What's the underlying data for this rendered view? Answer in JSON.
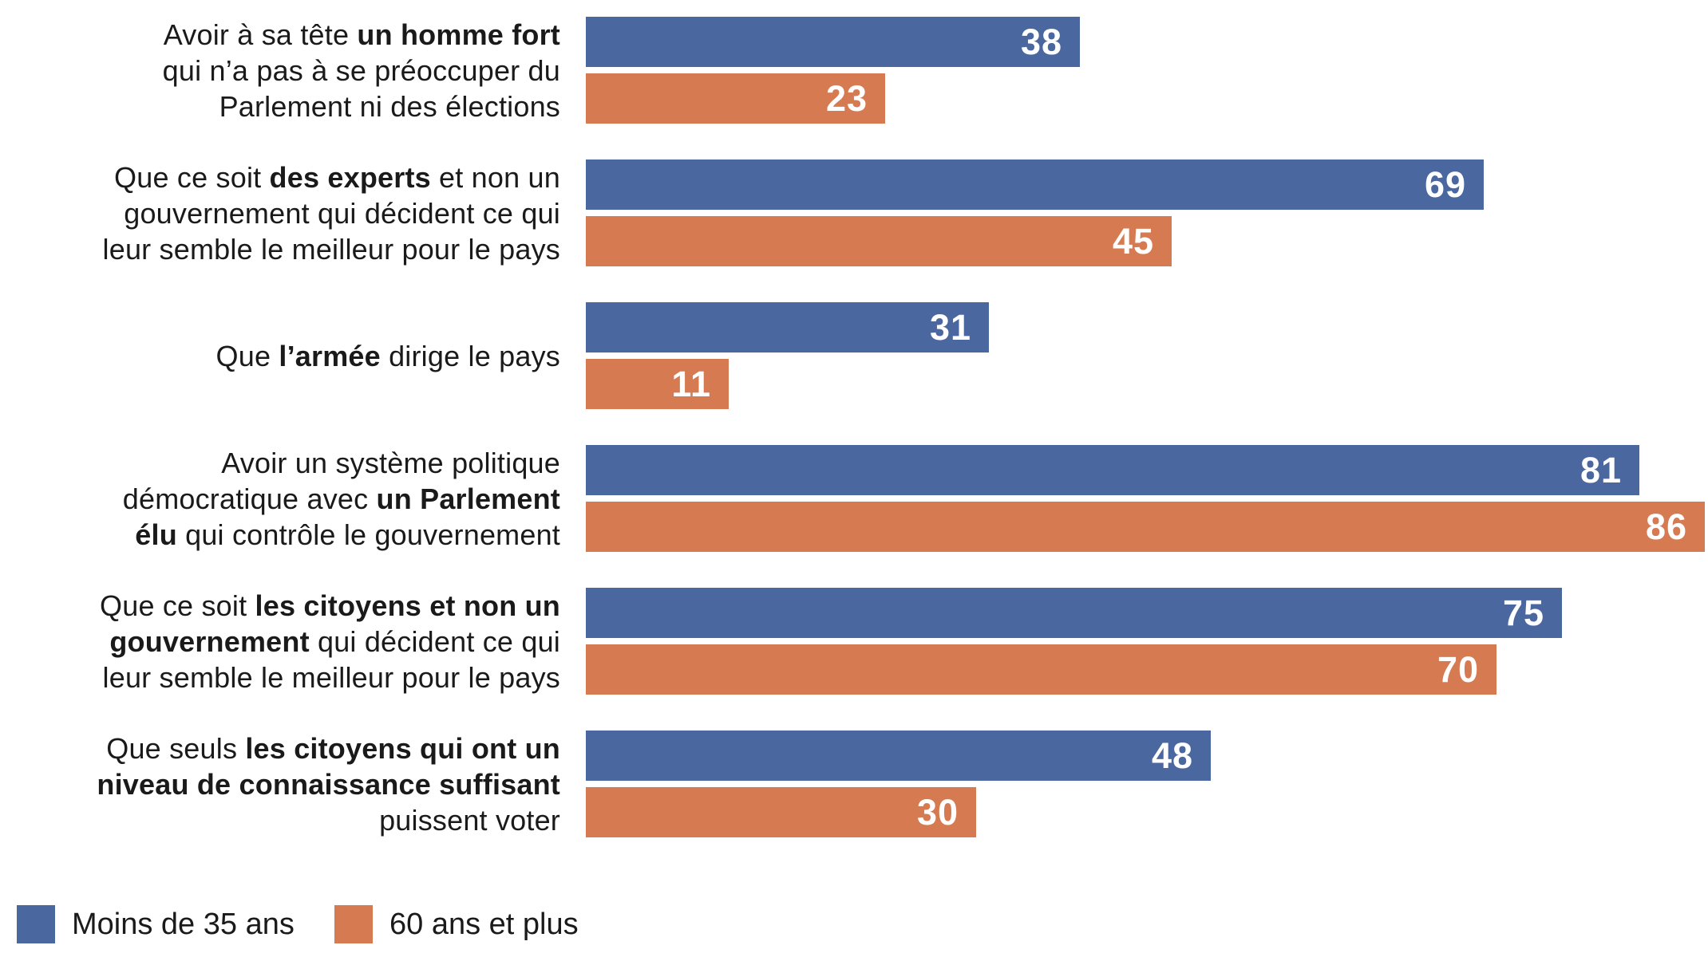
{
  "chart_data": {
    "type": "bar",
    "orientation": "horizontal",
    "title": "",
    "xlabel": "",
    "ylabel": "",
    "xlim": [
      0,
      86
    ],
    "grid": false,
    "value_labels": "inside-end",
    "legend_position": "bottom-left",
    "series": [
      {
        "name": "Moins de 35 ans",
        "color": "#4a67a0"
      },
      {
        "name": "60 ans et plus",
        "color": "#d57a51"
      }
    ],
    "categories": [
      "Avoir à sa tête un homme fort qui n’a pas à se préoccuper du Parlement ni des élections",
      "Que ce soit des experts et non un gouvernement qui décident ce qui leur semble le meilleur pour le pays",
      "Que l’armée dirige le pays",
      "Avoir un système politique démocratique avec un Parlement élu qui contrôle le gouvernement",
      "Que ce soit les citoyens et non un gouvernement qui décident ce qui leur semble le meilleur pour le pays",
      "Que seuls les citoyens qui ont un niveau de connaissance suffisant puissent voter"
    ],
    "rows": [
      {
        "label_lines": [
          [
            {
              "t": "Avoir à sa tête ",
              "b": 0
            },
            {
              "t": "un homme fort",
              "b": 1
            }
          ],
          [
            {
              "t": "qui n’a pas à se préoccuper du",
              "b": 0
            }
          ],
          [
            {
              "t": "Parlement ni des élections",
              "b": 0
            }
          ]
        ],
        "values": [
          38,
          23
        ]
      },
      {
        "label_lines": [
          [
            {
              "t": "Que ce soit ",
              "b": 0
            },
            {
              "t": "des experts",
              "b": 1
            },
            {
              "t": " et non un",
              "b": 0
            }
          ],
          [
            {
              "t": "gouvernement qui décident ce qui",
              "b": 0
            }
          ],
          [
            {
              "t": "leur semble le meilleur pour le pays",
              "b": 0
            }
          ]
        ],
        "values": [
          69,
          45
        ]
      },
      {
        "label_lines": [
          [
            {
              "t": "Que ",
              "b": 0
            },
            {
              "t": "l’armée",
              "b": 1
            },
            {
              "t": " dirige le pays",
              "b": 0
            }
          ]
        ],
        "values": [
          31,
          11
        ]
      },
      {
        "label_lines": [
          [
            {
              "t": "Avoir un système politique",
              "b": 0
            }
          ],
          [
            {
              "t": "démocratique avec ",
              "b": 0
            },
            {
              "t": "un Parlement",
              "b": 1
            }
          ],
          [
            {
              "t": "élu",
              "b": 1
            },
            {
              "t": " qui contrôle le gouvernement",
              "b": 0
            }
          ]
        ],
        "values": [
          81,
          86
        ]
      },
      {
        "label_lines": [
          [
            {
              "t": "Que ce soit ",
              "b": 0
            },
            {
              "t": "les citoyens et non un",
              "b": 1
            }
          ],
          [
            {
              "t": "gouvernement",
              "b": 1
            },
            {
              "t": " qui décident ce qui",
              "b": 0
            }
          ],
          [
            {
              "t": "leur semble le meilleur pour le pays",
              "b": 0
            }
          ]
        ],
        "values": [
          75,
          70
        ]
      },
      {
        "label_lines": [
          [
            {
              "t": "Que seuls ",
              "b": 0
            },
            {
              "t": "les citoyens qui ont un",
              "b": 1
            }
          ],
          [
            {
              "t": "niveau de connaissance suffisant",
              "b": 1
            }
          ],
          [
            {
              "t": "puissent voter",
              "b": 0
            }
          ]
        ],
        "values": [
          48,
          30
        ]
      }
    ]
  },
  "colors": {
    "series_young": "#4a67a0",
    "series_old": "#d57a51",
    "value_label": "#ffffff",
    "text": "#1a1a1a",
    "background": "#ffffff"
  }
}
